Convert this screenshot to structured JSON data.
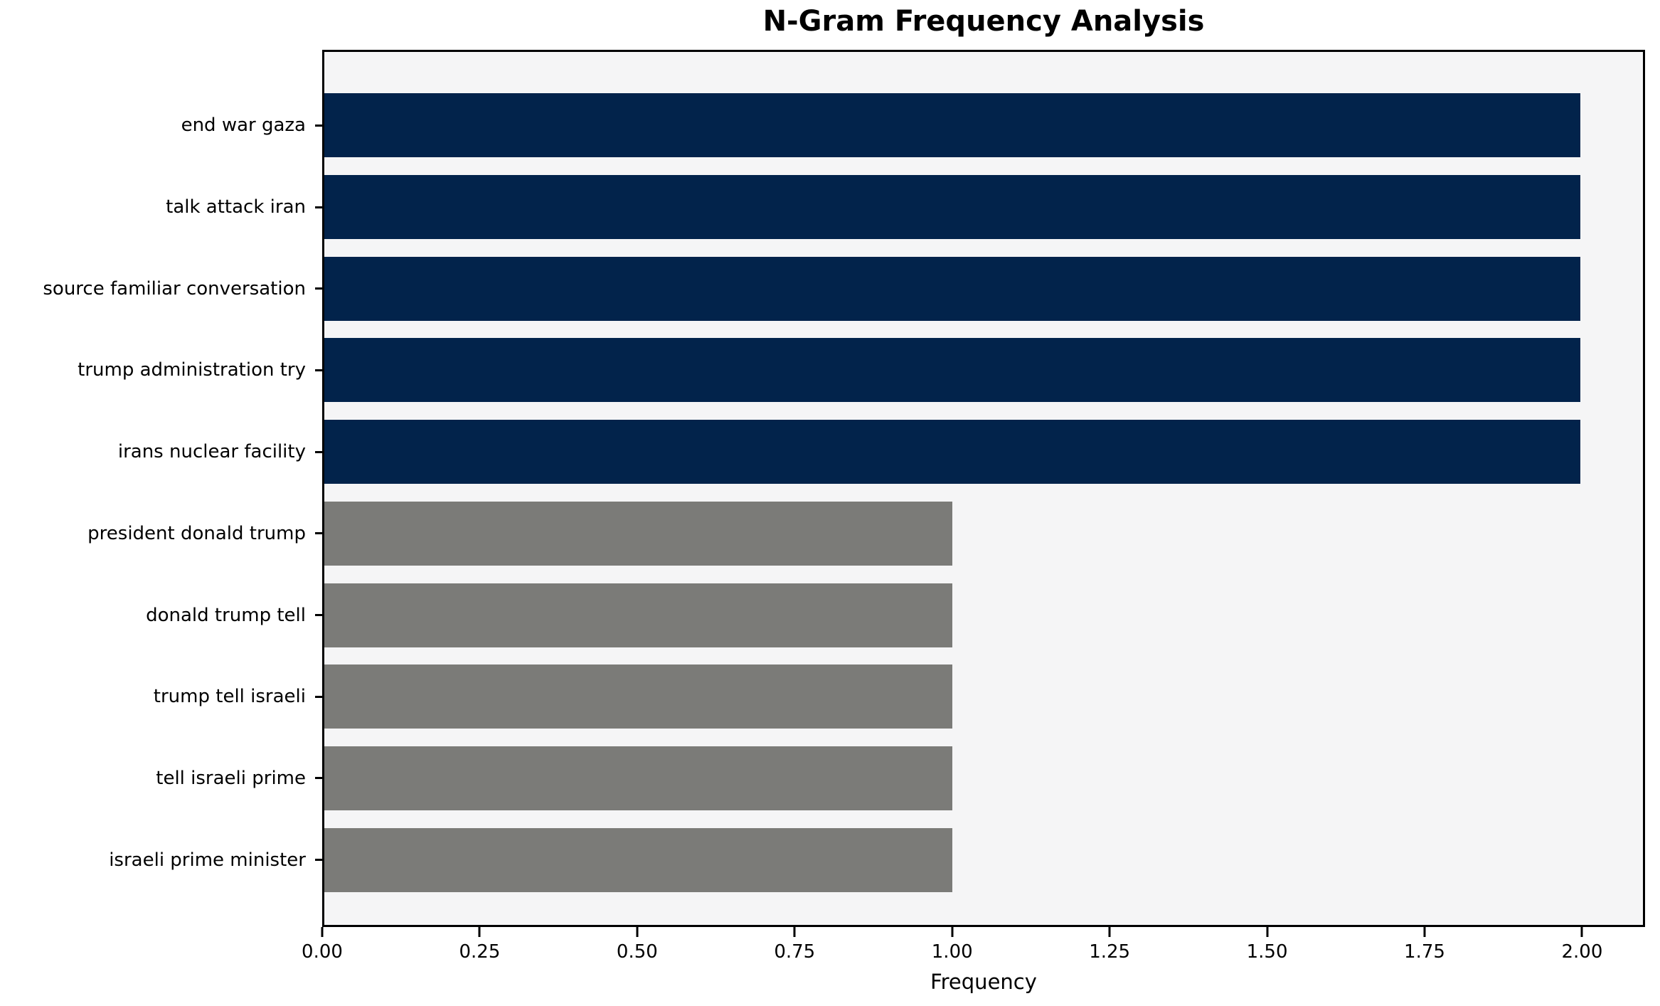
{
  "chart_data": {
    "type": "bar",
    "orientation": "horizontal",
    "title": "N-Gram Frequency Analysis",
    "xlabel": "Frequency",
    "ylabel": "",
    "categories": [
      "end war gaza",
      "talk attack iran",
      "source familiar conversation",
      "trump administration try",
      "irans nuclear facility",
      "president donald trump",
      "donald trump tell",
      "trump tell israeli",
      "tell israeli prime",
      "israeli prime minister"
    ],
    "values": [
      2,
      2,
      2,
      2,
      2,
      1,
      1,
      1,
      1,
      1
    ],
    "bar_colors": [
      "#02234b",
      "#02234b",
      "#02234b",
      "#02234b",
      "#02234b",
      "#7b7b78",
      "#7b7b78",
      "#7b7b78",
      "#7b7b78",
      "#7b7b78"
    ],
    "xlim": [
      0,
      2.1
    ],
    "x_ticks": [
      "0.00",
      "0.25",
      "0.50",
      "0.75",
      "1.00",
      "1.25",
      "1.50",
      "1.75",
      "2.00"
    ],
    "x_tick_values": [
      0,
      0.25,
      0.5,
      0.75,
      1.0,
      1.25,
      1.5,
      1.75,
      2.0
    ],
    "grid": false,
    "legend": false,
    "plot_bg": "#f5f5f6",
    "figure_bg": "#ffffff",
    "navy_color": "#02234b",
    "gray_color": "#7b7b78"
  }
}
